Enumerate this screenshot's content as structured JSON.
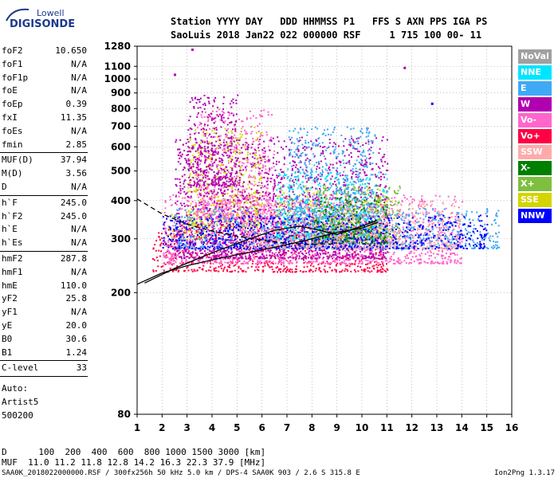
{
  "logo": {
    "top": "Lowell",
    "bottom": "DIGISONDE"
  },
  "header": {
    "line1": "Station YYYY DAY   DDD HHMMSS P1   FFS S AXN PPS IGA PS",
    "line2": "SaoLuis 2018 Jan22 022 000000 RSF     1 715 100 00- 11"
  },
  "params": [
    {
      "label": "foF2",
      "value": "10.650"
    },
    {
      "label": "foF1",
      "value": "N/A"
    },
    {
      "label": "foF1p",
      "value": "N/A"
    },
    {
      "label": "foE",
      "value": "N/A"
    },
    {
      "label": "foEp",
      "value": "0.39"
    },
    {
      "label": "fxI",
      "value": "11.35"
    },
    {
      "label": "foEs",
      "value": "N/A"
    },
    {
      "label": "fmin",
      "value": "2.85"
    },
    {
      "label": "MUF(D)",
      "value": "37.94"
    },
    {
      "label": "M(D)",
      "value": "3.56"
    },
    {
      "label": "D",
      "value": "N/A"
    },
    {
      "label": "h`F",
      "value": "245.0"
    },
    {
      "label": "h`F2",
      "value": "245.0"
    },
    {
      "label": "h`E",
      "value": "N/A"
    },
    {
      "label": "h`Es",
      "value": "N/A"
    },
    {
      "label": "hmF2",
      "value": "287.8"
    },
    {
      "label": "hmF1",
      "value": "N/A"
    },
    {
      "label": "hmE",
      "value": "110.0"
    },
    {
      "label": "yF2",
      "value": "25.8"
    },
    {
      "label": "yF1",
      "value": "N/A"
    },
    {
      "label": "yE",
      "value": "20.0"
    },
    {
      "label": "B0",
      "value": "30.6"
    },
    {
      "label": "B1",
      "value": "1.24"
    },
    {
      "label": "C-level",
      "value": "33"
    }
  ],
  "auto": {
    "line1": "Auto:",
    "line2": "Artist5",
    "line3": "500200"
  },
  "legend": [
    {
      "label": "NoVal",
      "color": "#a0a0a0"
    },
    {
      "label": "NNE",
      "color": "#00e5ff"
    },
    {
      "label": "E",
      "color": "#3fa9f5"
    },
    {
      "label": "W",
      "color": "#b000b0"
    },
    {
      "label": "Vo-",
      "color": "#ff66cc"
    },
    {
      "label": "Vo+",
      "color": "#ff0044"
    },
    {
      "label": "SSW",
      "color": "#ffaaaa"
    },
    {
      "label": "X-",
      "color": "#008000"
    },
    {
      "label": "X+",
      "color": "#7fbf3f"
    },
    {
      "label": "SSE",
      "color": "#d4d400"
    },
    {
      "label": "NNW",
      "color": "#0000ff"
    }
  ],
  "muf_table": {
    "d_line": "D      100  200  400  600  800 1000 1500 3000 [km]",
    "muf_line": "MUF  11.0 11.2 11.8 12.8 14.2 16.3 22.3 37.9 [MHz]"
  },
  "footer": {
    "left": "SAA0K_2018022000000.RSF / 300fx256h 50 kHz 5.0 km / DPS-4 SAA0K 903 / 2.6 S 315.8 E",
    "right": "Ion2Png 1.3.17"
  },
  "chart_data": {
    "type": "scatter",
    "title": "",
    "xlabel": "",
    "ylabel": "",
    "xlim": [
      1,
      16
    ],
    "ylim": [
      80,
      1280
    ],
    "y_scale": "log",
    "x_ticks": [
      "1",
      "2",
      "3",
      "4",
      "5",
      "6",
      "7",
      "8",
      "9",
      "10",
      "11",
      "12",
      "13",
      "14",
      "15",
      "16"
    ],
    "y_ticks": [
      "80",
      "200",
      "300",
      "400",
      "500",
      "600",
      "700",
      "800",
      "900",
      "1000",
      "1100",
      "1280"
    ],
    "grid": "dotted",
    "legend_placement": "right",
    "series": [
      {
        "color": "#d4d400",
        "clusters": [
          [
            2.2,
            4.0,
            300,
            370
          ],
          [
            3.0,
            6.0,
            330,
            700
          ],
          [
            6.5,
            11.0,
            300,
            450
          ]
        ]
      },
      {
        "color": "#ff0044",
        "clusters": [
          [
            1.6,
            11.0,
            235,
            330
          ]
        ]
      },
      {
        "color": "#ff66cc",
        "clusters": [
          [
            2.0,
            14.0,
            250,
            420
          ],
          [
            3.3,
            6.5,
            350,
            800
          ]
        ]
      },
      {
        "color": "#b000b0",
        "clusters": [
          [
            2.5,
            11.0,
            260,
            650
          ],
          [
            3.0,
            5.0,
            450,
            900
          ]
        ]
      },
      {
        "color": "#3fa9f5",
        "clusters": [
          [
            2.5,
            15.5,
            280,
            380
          ],
          [
            7.0,
            10.5,
            350,
            700
          ]
        ]
      },
      {
        "color": "#00e5ff",
        "clusters": [
          [
            6.5,
            11.0,
            300,
            500
          ]
        ]
      },
      {
        "color": "#7fbf3f",
        "clusters": [
          [
            8.0,
            11.5,
            300,
            450
          ]
        ]
      },
      {
        "color": "#008000",
        "clusters": [
          [
            8.0,
            11.0,
            290,
            420
          ]
        ]
      },
      {
        "color": "#ffaaaa",
        "clusters": [
          [
            5.0,
            14.0,
            280,
            400
          ]
        ]
      },
      {
        "color": "#0000ff",
        "clusters": [
          [
            2.0,
            15.0,
            280,
            360
          ]
        ]
      }
    ],
    "isolated_points": [
      {
        "x": 2.5,
        "y": 1035,
        "color": "#b000b0"
      },
      {
        "x": 11.7,
        "y": 1090,
        "color": "#b000b0"
      },
      {
        "x": 12.8,
        "y": 832,
        "color": "#0000ff"
      },
      {
        "x": 3.2,
        "y": 1250,
        "color": "#b000b0"
      }
    ],
    "profile_curves": [
      {
        "style": "solid",
        "points": [
          [
            1,
            213
          ],
          [
            2,
            232
          ],
          [
            3,
            245
          ],
          [
            4,
            256
          ],
          [
            5,
            266
          ],
          [
            6,
            276
          ],
          [
            7,
            287
          ],
          [
            8,
            300
          ],
          [
            9,
            315
          ],
          [
            10,
            325
          ],
          [
            10.65,
            340
          ]
        ]
      },
      {
        "style": "solid",
        "points": [
          [
            1.3,
            215
          ],
          [
            2.5,
            240
          ],
          [
            4,
            270
          ],
          [
            5.5,
            300
          ],
          [
            6.5,
            320
          ],
          [
            7.5,
            330
          ],
          [
            8.3,
            320
          ],
          [
            9,
            310
          ],
          [
            10,
            330
          ],
          [
            10.6,
            345
          ]
        ]
      },
      {
        "style": "dashed",
        "points": [
          [
            1,
            405
          ],
          [
            2,
            362
          ],
          [
            3,
            335
          ],
          [
            4,
            318
          ],
          [
            5,
            306
          ],
          [
            6,
            297
          ],
          [
            7,
            290
          ],
          [
            8,
            288
          ],
          [
            9,
            289
          ]
        ]
      }
    ]
  }
}
